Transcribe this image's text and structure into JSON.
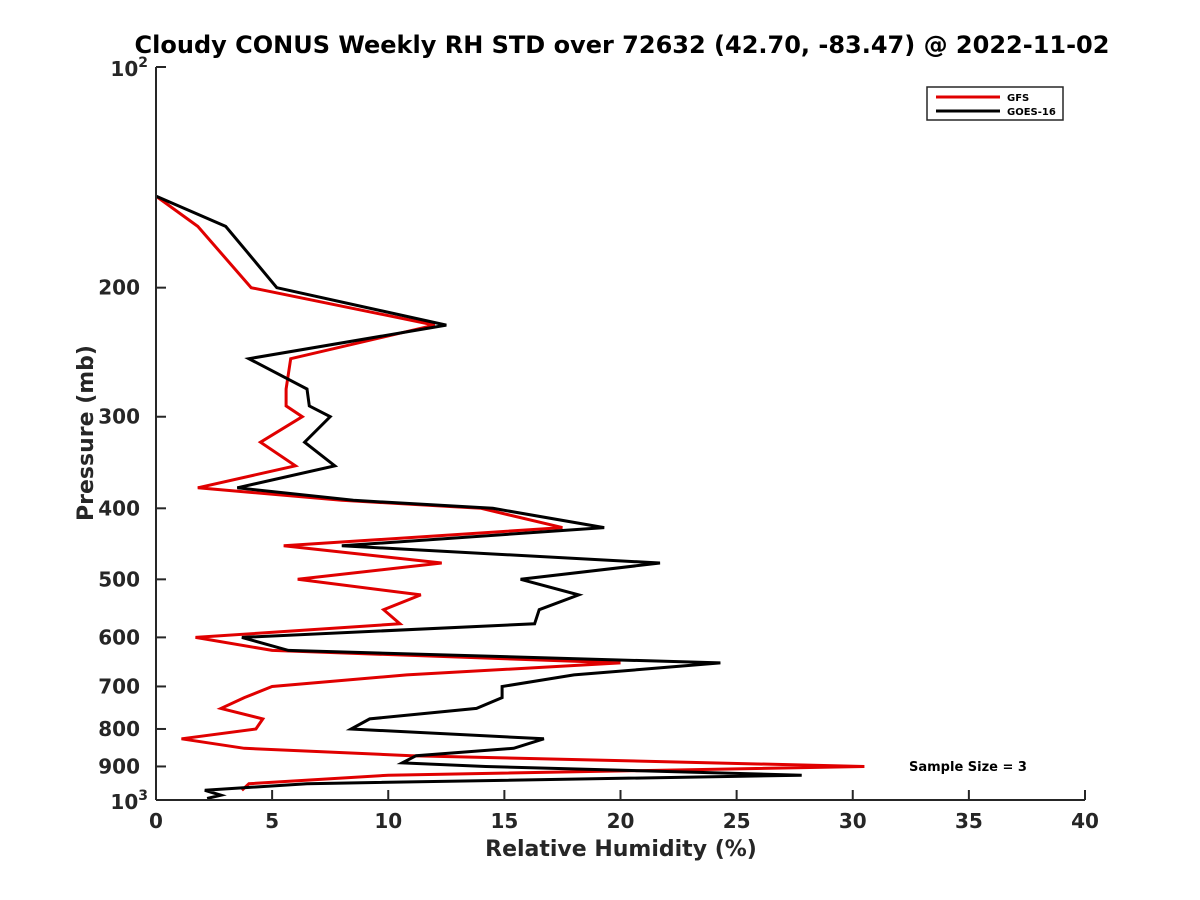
{
  "chart_data": {
    "type": "line",
    "title": "Cloudy CONUS Weekly RH STD over 72632 (42.70, -83.47) @ 2022-11-02",
    "xlabel": "Relative Humidity (%)",
    "ylabel": "Pressure (mb)",
    "xlim": [
      0,
      40
    ],
    "ylim": [
      100,
      1000
    ],
    "y_scale": "log",
    "y_reversed": true,
    "x_ticks": [
      "0",
      "5",
      "10",
      "15",
      "20",
      "25",
      "30",
      "35",
      "40"
    ],
    "y_ticks": [
      {
        "value": 100,
        "base": "10",
        "exp": "2"
      },
      {
        "value": 200,
        "label": "200"
      },
      {
        "value": 300,
        "label": "300"
      },
      {
        "value": 400,
        "label": "400"
      },
      {
        "value": 500,
        "label": "500"
      },
      {
        "value": 600,
        "label": "600"
      },
      {
        "value": 700,
        "label": "700"
      },
      {
        "value": 800,
        "label": "800"
      },
      {
        "value": 900,
        "label": "900"
      },
      {
        "value": 1000,
        "base": "10",
        "exp": "3"
      }
    ],
    "grid": false,
    "legend_position": "top-right",
    "annotation": "Sample Size = 3",
    "series": [
      {
        "name": "GFS",
        "color": "#e00000",
        "points": [
          [
            0.0,
            150
          ],
          [
            1.8,
            165
          ],
          [
            4.1,
            200
          ],
          [
            12.0,
            225
          ],
          [
            5.8,
            250
          ],
          [
            5.6,
            275
          ],
          [
            5.6,
            290
          ],
          [
            6.3,
            300
          ],
          [
            4.5,
            325
          ],
          [
            6.0,
            350
          ],
          [
            1.8,
            375
          ],
          [
            8.0,
            390
          ],
          [
            14.0,
            400
          ],
          [
            17.5,
            425
          ],
          [
            5.5,
            450
          ],
          [
            12.3,
            475
          ],
          [
            6.1,
            500
          ],
          [
            11.4,
            525
          ],
          [
            9.8,
            550
          ],
          [
            10.5,
            575
          ],
          [
            1.7,
            600
          ],
          [
            5.0,
            625
          ],
          [
            20.0,
            650
          ],
          [
            10.8,
            675
          ],
          [
            5.0,
            700
          ],
          [
            3.8,
            725
          ],
          [
            2.8,
            750
          ],
          [
            4.6,
            775
          ],
          [
            4.3,
            800
          ],
          [
            1.1,
            825
          ],
          [
            3.8,
            850
          ],
          [
            11.0,
            870
          ],
          [
            30.5,
            900
          ],
          [
            10.0,
            925
          ],
          [
            4.0,
            950
          ],
          [
            3.7,
            970
          ]
        ]
      },
      {
        "name": "GOES-16",
        "color": "#000000",
        "points": [
          [
            0.0,
            150
          ],
          [
            3.0,
            165
          ],
          [
            4.0,
            180
          ],
          [
            5.2,
            200
          ],
          [
            12.5,
            225
          ],
          [
            4.0,
            250
          ],
          [
            6.5,
            275
          ],
          [
            6.6,
            290
          ],
          [
            7.5,
            300
          ],
          [
            6.4,
            325
          ],
          [
            7.7,
            350
          ],
          [
            3.5,
            375
          ],
          [
            8.5,
            390
          ],
          [
            14.5,
            400
          ],
          [
            19.3,
            425
          ],
          [
            8.0,
            450
          ],
          [
            21.7,
            475
          ],
          [
            15.7,
            500
          ],
          [
            18.2,
            525
          ],
          [
            16.5,
            550
          ],
          [
            16.3,
            575
          ],
          [
            3.7,
            600
          ],
          [
            5.7,
            625
          ],
          [
            24.3,
            650
          ],
          [
            18.0,
            675
          ],
          [
            14.9,
            700
          ],
          [
            14.9,
            725
          ],
          [
            13.8,
            750
          ],
          [
            9.2,
            775
          ],
          [
            8.4,
            800
          ],
          [
            16.7,
            825
          ],
          [
            15.4,
            850
          ],
          [
            11.2,
            870
          ],
          [
            10.6,
            890
          ],
          [
            14.2,
            900
          ],
          [
            27.8,
            925
          ],
          [
            6.5,
            950
          ],
          [
            2.1,
            970
          ],
          [
            2.8,
            985
          ],
          [
            2.2,
            995
          ]
        ]
      }
    ]
  }
}
